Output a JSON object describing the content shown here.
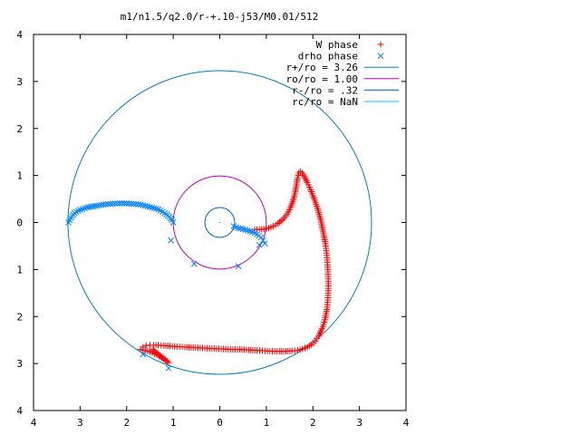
{
  "chart_data": {
    "type": "scatter",
    "title": "m1/n1.5/q2.0/r-+.10-j53/M0.01/512",
    "xlim": [
      -4,
      4
    ],
    "ylim": [
      -4,
      4
    ],
    "xtick_values": [
      -4,
      -3,
      -2,
      -1,
      0,
      1,
      2,
      3,
      4
    ],
    "xtick_labels": [
      "4",
      "3",
      "2",
      "1",
      "0",
      "1",
      "2",
      "3",
      "4"
    ],
    "ytick_values": [
      4,
      3,
      2,
      1,
      0,
      -1,
      -2,
      -3,
      -4
    ],
    "ytick_labels": [
      "4",
      "3",
      "2",
      "1",
      "0",
      "1",
      "2",
      "3",
      "4"
    ],
    "grid": false,
    "legend_position": "top-right",
    "legend": [
      {
        "label": "W phase",
        "kind": "plus",
        "color": "#ff0000"
      },
      {
        "label": "drho phase",
        "kind": "cross",
        "color": "#0080ff"
      },
      {
        "label": "r+/ro = 3.26",
        "kind": "line",
        "color": "#0080c0"
      },
      {
        "label": "ro/ro = 1.00",
        "kind": "line",
        "color": "#c000c0"
      },
      {
        "label": "r-/ro = .32",
        "kind": "line",
        "color": "#0060c0"
      },
      {
        "label": "rc/ro = NaN",
        "kind": "line",
        "color": "#00c0ff"
      }
    ],
    "circles": [
      {
        "name": "r+/ro",
        "r": 3.26,
        "color": "#0080c0"
      },
      {
        "name": "ro/ro",
        "r": 1.0,
        "color": "#c000c0"
      },
      {
        "name": "r-/ro",
        "r": 0.32,
        "color": "#0060c0"
      }
    ],
    "series": [
      {
        "name": "W phase",
        "kind": "plus",
        "color": "#ff0000",
        "x": [
          0.75,
          0.85,
          0.95,
          1.05,
          1.15,
          1.25,
          1.35,
          1.45,
          1.52,
          1.58,
          1.62,
          1.65,
          1.67,
          1.7,
          1.73,
          1.77,
          1.82,
          1.88,
          1.95,
          2.02,
          2.1,
          2.17,
          2.22,
          2.27,
          2.3,
          2.32,
          2.33,
          2.33,
          2.32,
          2.3,
          2.27,
          2.23,
          2.18,
          2.12,
          2.05,
          1.97,
          1.88,
          1.78,
          1.67,
          1.55,
          1.42,
          1.28,
          1.13,
          0.97,
          0.8,
          0.62,
          0.43,
          0.23,
          0.03,
          -0.17,
          -0.37,
          -0.57,
          -0.75,
          -0.92,
          -1.07,
          -1.2,
          -1.32,
          -1.42,
          -1.5,
          -1.58,
          -1.65,
          -1.7,
          -1.5,
          -1.35,
          -1.2,
          -1.1,
          -1.45,
          -1.35,
          -1.25
        ],
        "y": [
          -0.15,
          -0.15,
          -0.14,
          -0.12,
          -0.08,
          -0.02,
          0.06,
          0.18,
          0.32,
          0.48,
          0.65,
          0.82,
          0.95,
          1.05,
          1.08,
          1.05,
          0.97,
          0.85,
          0.7,
          0.52,
          0.3,
          0.05,
          -0.2,
          -0.45,
          -0.7,
          -0.95,
          -1.2,
          -1.45,
          -1.65,
          -1.85,
          -2.02,
          -2.17,
          -2.3,
          -2.42,
          -2.52,
          -2.6,
          -2.65,
          -2.69,
          -2.72,
          -2.73,
          -2.74,
          -2.74,
          -2.74,
          -2.73,
          -2.72,
          -2.71,
          -2.7,
          -2.7,
          -2.69,
          -2.68,
          -2.67,
          -2.66,
          -2.65,
          -2.64,
          -2.63,
          -2.62,
          -2.61,
          -2.61,
          -2.61,
          -2.62,
          -2.65,
          -2.7,
          -2.75,
          -2.82,
          -2.9,
          -2.98,
          -2.7,
          -2.78,
          -2.86
        ]
      },
      {
        "name": "drho phase",
        "kind": "cross",
        "color": "#0080ff",
        "x": [
          -3.25,
          -3.2,
          -3.12,
          -3.0,
          -2.85,
          -2.68,
          -2.5,
          -2.3,
          -2.1,
          -1.9,
          -1.7,
          -1.5,
          -1.32,
          -1.18,
          -1.08,
          -1.03,
          -1.0,
          0.3,
          0.4,
          0.5,
          0.6,
          0.7,
          0.8,
          0.88,
          0.93,
          0.97,
          -1.05,
          -0.55,
          0.4,
          0.85,
          -1.65,
          -1.1
        ],
        "y": [
          0.0,
          0.1,
          0.2,
          0.27,
          0.32,
          0.35,
          0.38,
          0.4,
          0.41,
          0.4,
          0.38,
          0.33,
          0.28,
          0.2,
          0.12,
          0.05,
          0.0,
          -0.08,
          -0.12,
          -0.14,
          -0.17,
          -0.2,
          -0.25,
          -0.32,
          -0.38,
          -0.45,
          -0.38,
          -0.88,
          -0.93,
          -0.48,
          -2.8,
          -3.1
        ]
      }
    ]
  }
}
